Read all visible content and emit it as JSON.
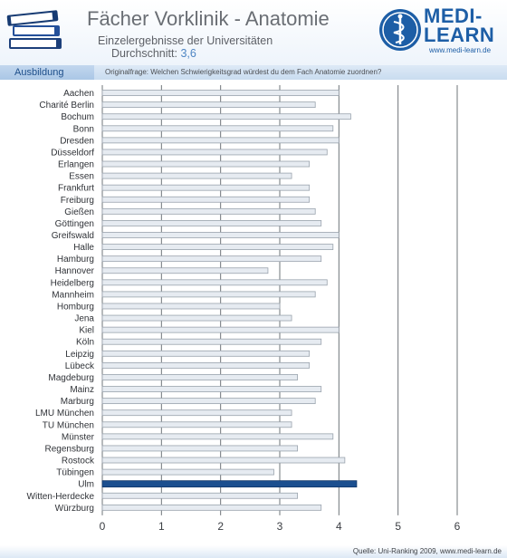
{
  "header": {
    "title": "Fächer Vorklinik - Anatomie",
    "subtitle": "Einzelergebnisse der Universitäten",
    "average_label": "Durchschnitt:",
    "average_value": "3,6",
    "logo_line1": "MEDI-",
    "logo_line2": "LEARN",
    "logo_url": "www.medi-learn.de"
  },
  "band": {
    "section_label": "Ausbildung",
    "question": "Originalfrage: Welchen Schwierigkeitsgrad würdest du dem Fach Anatomie zuordnen?"
  },
  "footer": {
    "source": "Quelle: Uni-Ranking 2009, www.medi-learn.de"
  },
  "colors": {
    "bar_fill": "#e6ebf1",
    "bar_stroke": "#9aa3ad",
    "highlight_fill": "#1b4f8f",
    "brand": "#1d5ea6"
  },
  "chart_data": {
    "type": "bar",
    "orientation": "horizontal",
    "categories": [
      "Aachen",
      "Charité Berlin",
      "Bochum",
      "Bonn",
      "Dresden",
      "Düsseldorf",
      "Erlangen",
      "Essen",
      "Frankfurt",
      "Freiburg",
      "Gießen",
      "Göttingen",
      "Greifswald",
      "Halle",
      "Hamburg",
      "Hannover",
      "Heidelberg",
      "Mannheim",
      "Homburg",
      "Jena",
      "Kiel",
      "Köln",
      "Leipzig",
      "Lübeck",
      "Magdeburg",
      "Mainz",
      "Marburg",
      "LMU München",
      "TU München",
      "Münster",
      "Regensburg",
      "Rostock",
      "Tübingen",
      "Ulm",
      "Witten-Herdecke",
      "Würzburg"
    ],
    "values": [
      4.0,
      3.6,
      4.2,
      3.9,
      4.0,
      3.8,
      3.5,
      3.2,
      3.5,
      3.5,
      3.6,
      3.7,
      4.0,
      3.9,
      3.7,
      2.8,
      3.8,
      3.6,
      3.0,
      3.2,
      4.0,
      3.7,
      3.5,
      3.5,
      3.3,
      3.7,
      3.6,
      3.2,
      3.2,
      3.9,
      3.3,
      4.1,
      2.9,
      4.3,
      3.3,
      3.7
    ],
    "highlight": "Ulm",
    "xlim": [
      0,
      6
    ],
    "xticks": [
      "0",
      "1",
      "2",
      "3",
      "4",
      "5",
      "6"
    ],
    "grid": true
  }
}
